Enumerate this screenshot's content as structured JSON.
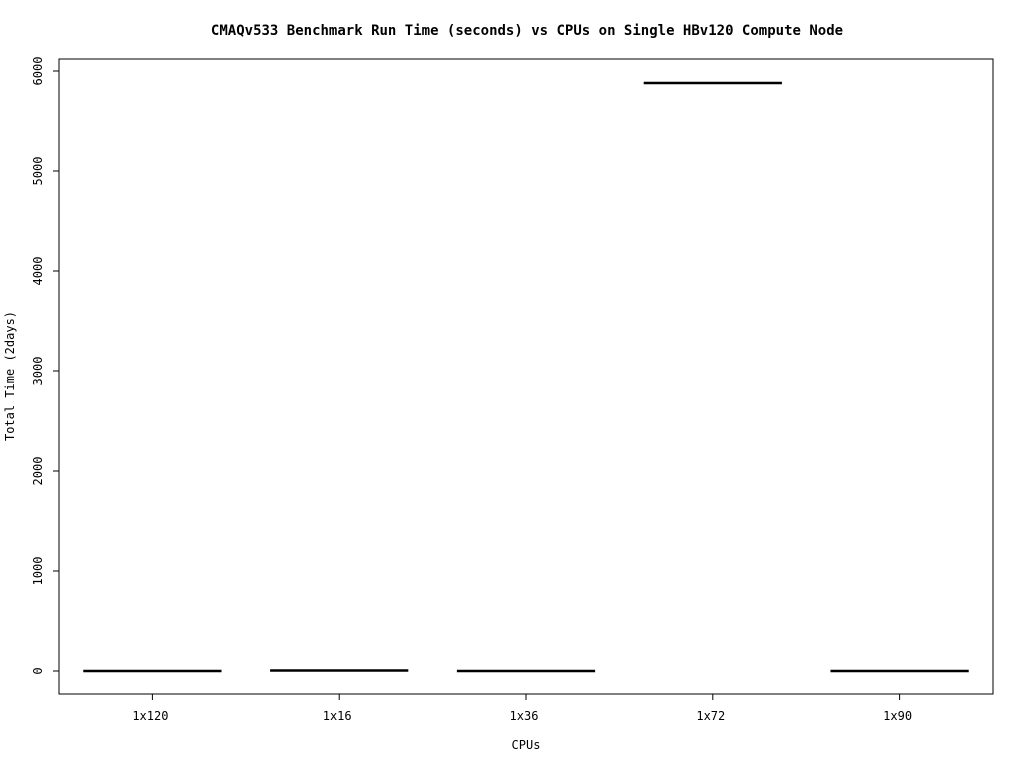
{
  "chart_data": {
    "type": "boxplot",
    "title": "CMAQv533 Benchmark Run Time (seconds) vs CPUs on Single HBv120 Compute Node",
    "xlabel": "CPUs",
    "ylabel": "Total Time (2days)",
    "categories": [
      "1x120",
      "1x16",
      "1x36",
      "1x72",
      "1x90"
    ],
    "values": [
      0,
      5,
      0,
      5880,
      0
    ],
    "ylim": [
      -230,
      6120
    ],
    "yticks": [
      0,
      1000,
      2000,
      3000,
      4000,
      5000,
      6000
    ],
    "grid": false,
    "legend": "none",
    "colors": {
      "line": "#000000",
      "frame": "#000000",
      "background": "#ffffff"
    }
  }
}
